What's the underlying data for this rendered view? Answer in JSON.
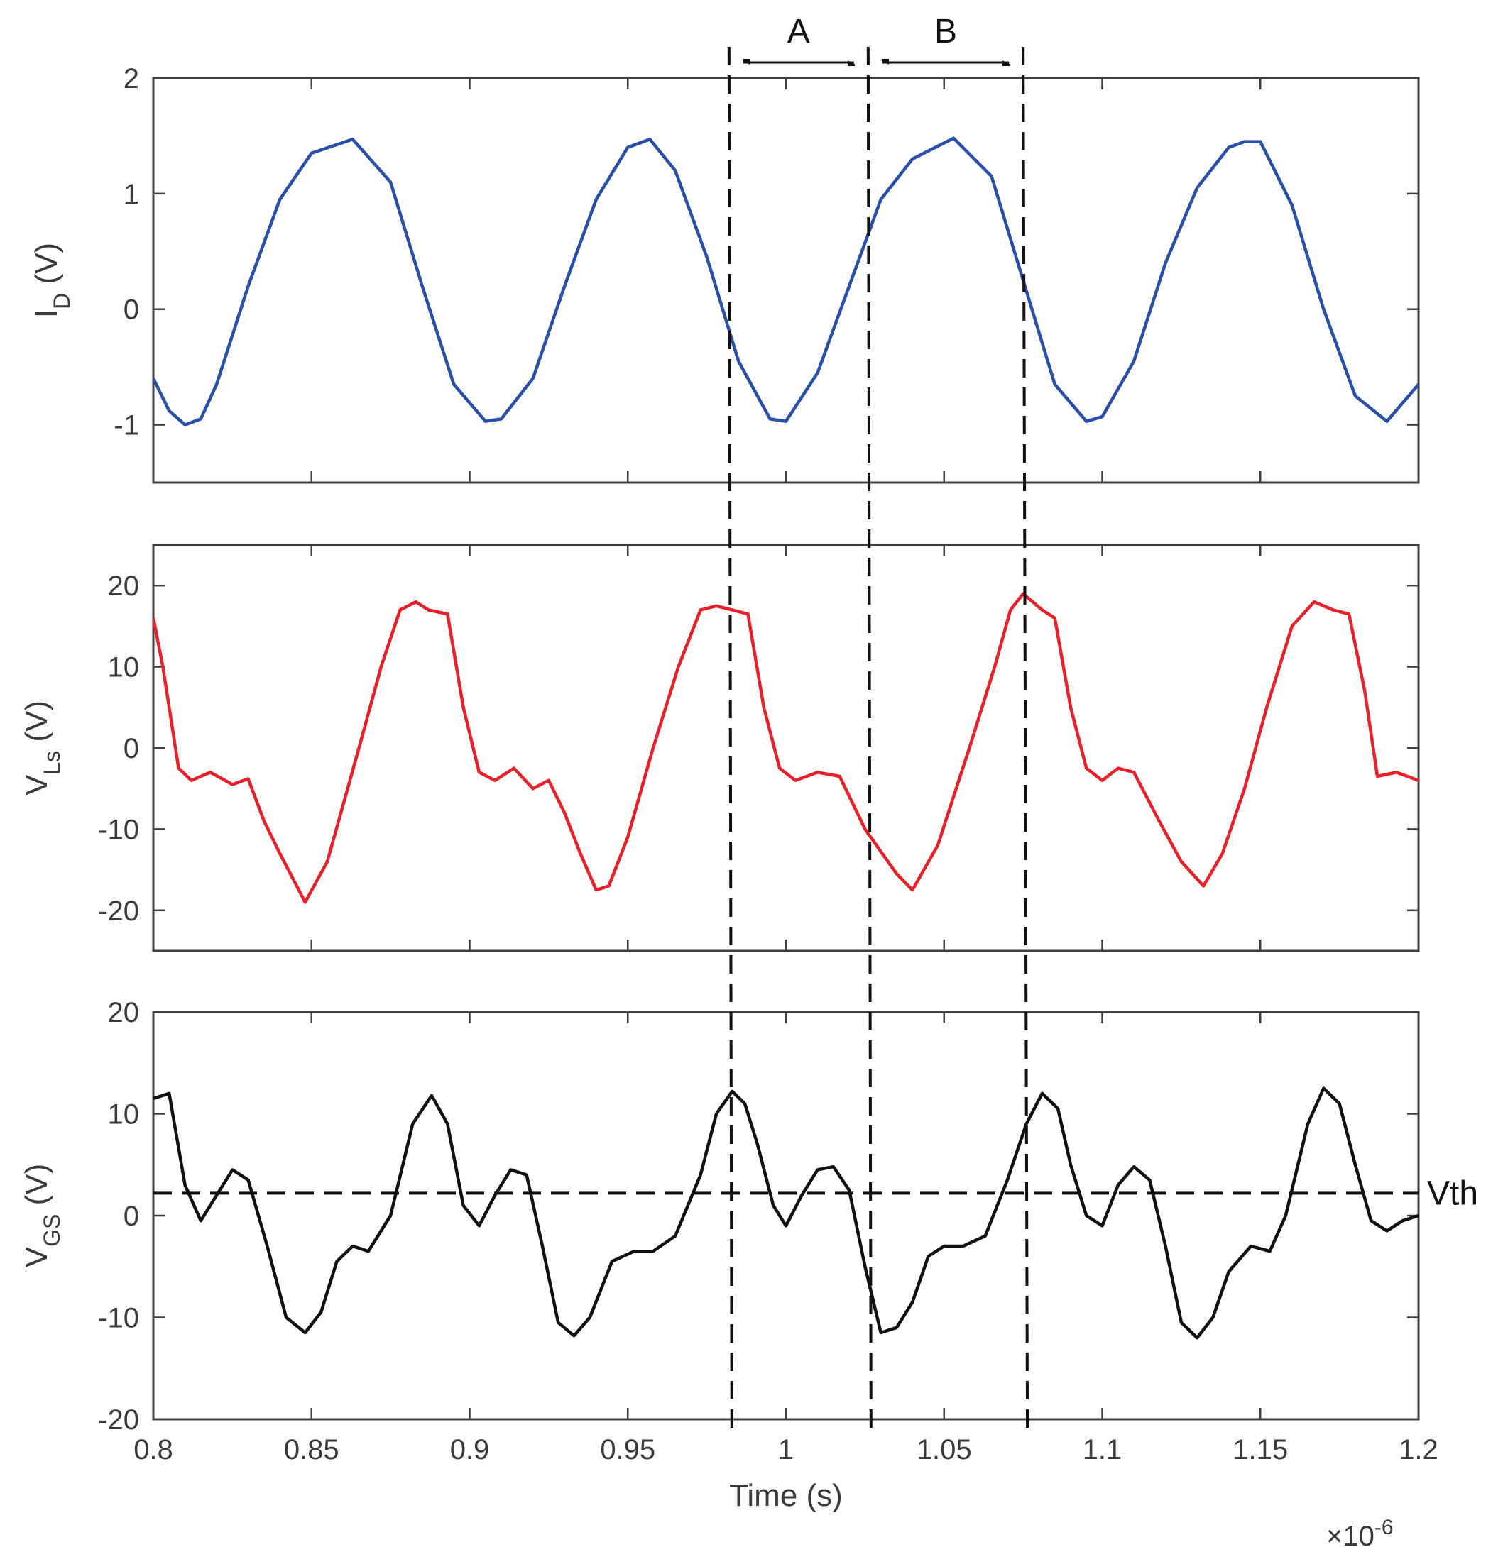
{
  "chart_data": [
    {
      "type": "line",
      "panel": "top",
      "ylabel": {
        "main": "I",
        "sub": "D",
        "unit": " (V)"
      },
      "xlim": [
        0.8,
        1.2
      ],
      "ylim": [
        -1.5,
        2
      ],
      "yticks": [
        2,
        1,
        0,
        -1
      ],
      "ytick_labels": [
        "2",
        "1",
        "0",
        "-1"
      ],
      "series": [
        {
          "color": "#2a4fa8",
          "x": [
            0.8,
            0.805,
            0.81,
            0.815,
            0.82,
            0.83,
            0.84,
            0.85,
            0.863,
            0.875,
            0.885,
            0.895,
            0.905,
            0.91,
            0.92,
            0.93,
            0.94,
            0.95,
            0.957,
            0.965,
            0.975,
            0.985,
            0.995,
            1.0,
            1.01,
            1.02,
            1.03,
            1.04,
            1.053,
            1.065,
            1.075,
            1.085,
            1.095,
            1.1,
            1.11,
            1.12,
            1.13,
            1.14,
            1.145,
            1.15,
            1.16,
            1.17,
            1.18,
            1.19,
            1.2
          ],
          "y": [
            -0.6,
            -0.88,
            -1.0,
            -0.95,
            -0.65,
            0.2,
            0.95,
            1.35,
            1.47,
            1.1,
            0.2,
            -0.65,
            -0.97,
            -0.95,
            -0.6,
            0.2,
            0.95,
            1.4,
            1.47,
            1.2,
            0.45,
            -0.45,
            -0.95,
            -0.97,
            -0.55,
            0.2,
            0.95,
            1.3,
            1.48,
            1.15,
            0.25,
            -0.65,
            -0.97,
            -0.93,
            -0.45,
            0.4,
            1.05,
            1.4,
            1.45,
            1.45,
            0.9,
            0.0,
            -0.75,
            -0.97,
            -0.65
          ]
        }
      ]
    },
    {
      "type": "line",
      "panel": "middle",
      "ylabel": {
        "main": "V",
        "sub": "Ls",
        "unit": " (V)"
      },
      "xlim": [
        0.8,
        1.2
      ],
      "ylim": [
        -25,
        25
      ],
      "yticks": [
        20,
        10,
        0,
        -10,
        -20
      ],
      "ytick_labels": [
        "20",
        "10",
        "0",
        "-10",
        "-20"
      ],
      "series": [
        {
          "color": "#e8202a",
          "x": [
            0.8,
            0.803,
            0.808,
            0.812,
            0.818,
            0.825,
            0.83,
            0.835,
            0.84,
            0.848,
            0.855,
            0.865,
            0.872,
            0.878,
            0.883,
            0.887,
            0.893,
            0.898,
            0.903,
            0.908,
            0.914,
            0.92,
            0.925,
            0.93,
            0.935,
            0.94,
            0.944,
            0.95,
            0.958,
            0.966,
            0.973,
            0.978,
            0.983,
            0.988,
            0.993,
            0.998,
            1.003,
            1.01,
            1.017,
            1.025,
            1.035,
            1.04,
            1.048,
            1.058,
            1.066,
            1.071,
            1.075,
            1.081,
            1.085,
            1.09,
            1.095,
            1.1,
            1.105,
            1.11,
            1.118,
            1.125,
            1.132,
            1.138,
            1.145,
            1.152,
            1.16,
            1.167,
            1.173,
            1.178,
            1.183,
            1.187,
            1.193,
            1.2
          ],
          "y": [
            16,
            10,
            -2.5,
            -4,
            -3,
            -4.5,
            -3.8,
            -9,
            -13,
            -19,
            -14,
            0,
            10,
            17,
            18,
            17,
            16.5,
            5,
            -3,
            -4,
            -2.5,
            -5,
            -4,
            -8,
            -13,
            -17.5,
            -17,
            -11,
            0,
            10,
            17,
            17.5,
            17,
            16.5,
            5,
            -2.5,
            -4,
            -3,
            -3.5,
            -10,
            -15.5,
            -17.5,
            -12,
            0,
            10,
            17,
            19,
            17,
            16,
            5,
            -2.5,
            -4,
            -2.5,
            -3,
            -9,
            -14,
            -17,
            -13,
            -5,
            5,
            15,
            18,
            17,
            16.5,
            7,
            -3.5,
            -3,
            -4
          ]
        }
      ]
    },
    {
      "type": "line",
      "panel": "bottom",
      "ylabel": {
        "main": "V",
        "sub": "GS",
        "unit": " (V)"
      },
      "xlabel": "Time (s)",
      "x_exponent": "-6",
      "xlim": [
        0.8,
        1.2
      ],
      "ylim": [
        -20,
        20
      ],
      "yticks": [
        20,
        10,
        0,
        -10,
        -20
      ],
      "ytick_labels": [
        "20",
        "10",
        "0",
        "-10",
        "-20"
      ],
      "xticks": [
        0.8,
        0.85,
        0.9,
        0.95,
        1.0,
        1.05,
        1.1,
        1.15,
        1.2
      ],
      "xtick_labels": [
        "0.8",
        "0.85",
        "0.9",
        "0.95",
        "1",
        "1.05",
        "1.1",
        "1.15",
        "1.2"
      ],
      "series": [
        {
          "color": "#111111",
          "x": [
            0.8,
            0.805,
            0.81,
            0.815,
            0.82,
            0.825,
            0.83,
            0.836,
            0.842,
            0.848,
            0.853,
            0.858,
            0.863,
            0.868,
            0.875,
            0.882,
            0.888,
            0.893,
            0.898,
            0.903,
            0.908,
            0.913,
            0.918,
            0.923,
            0.928,
            0.933,
            0.938,
            0.945,
            0.952,
            0.958,
            0.965,
            0.973,
            0.978,
            0.983,
            0.987,
            0.991,
            0.996,
            1.0,
            1.005,
            1.01,
            1.015,
            1.02,
            1.025,
            1.03,
            1.035,
            1.04,
            1.045,
            1.05,
            1.056,
            1.063,
            1.07,
            1.076,
            1.081,
            1.086,
            1.09,
            1.095,
            1.1,
            1.105,
            1.11,
            1.115,
            1.12,
            1.125,
            1.13,
            1.135,
            1.14,
            1.147,
            1.153,
            1.158,
            1.165,
            1.17,
            1.175,
            1.18,
            1.185,
            1.19,
            1.195,
            1.2
          ],
          "y": [
            11.5,
            12,
            3,
            -0.5,
            2,
            4.5,
            3.5,
            -3,
            -10,
            -11.5,
            -9.5,
            -4.5,
            -3,
            -3.5,
            0,
            9,
            11.8,
            9,
            1,
            -1,
            2,
            4.5,
            4,
            -3,
            -10.5,
            -11.8,
            -10,
            -4.5,
            -3.5,
            -3.5,
            -2,
            4,
            10,
            12.2,
            11,
            7,
            1,
            -1,
            2,
            4.5,
            4.8,
            2.5,
            -5,
            -11.5,
            -11,
            -8.5,
            -4,
            -3,
            -3,
            -2,
            3.5,
            9,
            12,
            10.5,
            5,
            0,
            -1,
            3,
            4.8,
            3.5,
            -3,
            -10.5,
            -12,
            -10,
            -5.5,
            -3,
            -3.5,
            0,
            9,
            12.5,
            11,
            5,
            -0.5,
            -1.5,
            -0.5,
            0
          ]
        }
      ],
      "threshold": {
        "value": 2.2,
        "label": "Vth"
      }
    }
  ],
  "annotations": {
    "vlines_x": [
      0.982,
      1.026,
      1.075
    ],
    "interval_labels": [
      "A",
      "B"
    ]
  }
}
